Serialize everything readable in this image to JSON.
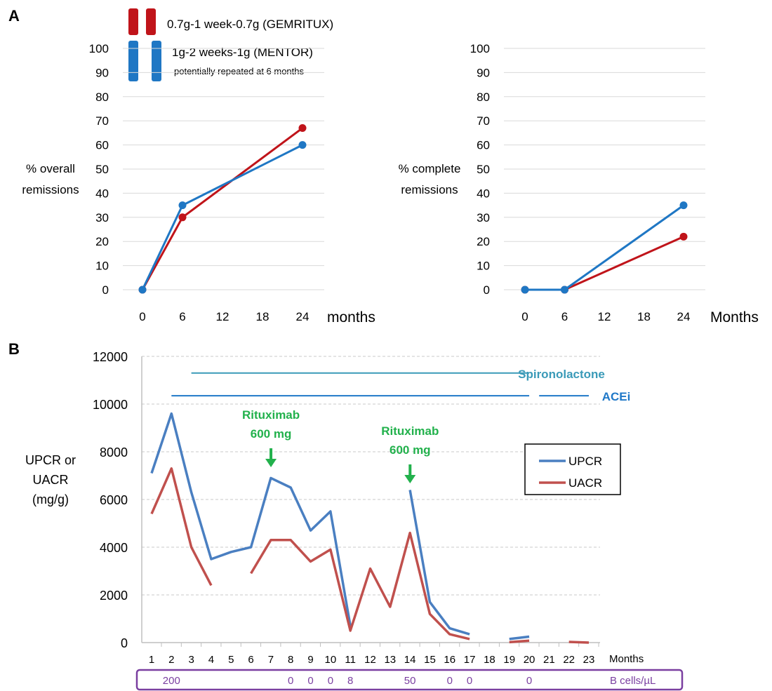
{
  "panels": {
    "a_label": "A",
    "b_label": "B"
  },
  "legend_a": {
    "gemritux": "0.7g-1 week-0.7g (GEMRITUX)",
    "mentor": "1g-2 weeks-1g (MENTOR)",
    "mentor_note": "potentially repeated at 6 months"
  },
  "colors": {
    "red": "#c0141a",
    "blue": "#1f77c4",
    "upcr": "#4a7fc1",
    "uacr": "#c0504d",
    "spironolactone": "#3a9ab8",
    "acei": "#1f78c8",
    "rituximab": "#22b14c",
    "bcells": "#7a3fa0",
    "grid": "#d9d9d9"
  },
  "chart_data": [
    {
      "type": "line",
      "ylabel": [
        "% overall",
        "remissions"
      ],
      "xlabel": "months",
      "x": [
        0,
        6,
        24
      ],
      "xticks": [
        0,
        6,
        12,
        18,
        24
      ],
      "yticks": [
        0,
        10,
        20,
        30,
        40,
        50,
        60,
        70,
        80,
        90,
        100
      ],
      "xlim": [
        0,
        24
      ],
      "ylim": [
        0,
        100
      ],
      "grid": true,
      "series": [
        {
          "key": "gemritux",
          "color": "red",
          "values": [
            0,
            30,
            67
          ]
        },
        {
          "key": "mentor",
          "color": "blue",
          "values": [
            0,
            35,
            60
          ]
        }
      ]
    },
    {
      "type": "line",
      "ylabel": [
        "% complete",
        "remissions"
      ],
      "xlabel": "Months",
      "x": [
        0,
        6,
        24
      ],
      "xticks": [
        0,
        6,
        12,
        18,
        24
      ],
      "yticks": [
        0,
        10,
        20,
        30,
        40,
        50,
        60,
        70,
        80,
        90,
        100
      ],
      "xlim": [
        0,
        24
      ],
      "ylim": [
        0,
        100
      ],
      "grid": true,
      "series": [
        {
          "key": "gemritux",
          "color": "red",
          "values": [
            0,
            0,
            22
          ]
        },
        {
          "key": "mentor",
          "color": "blue",
          "values": [
            0,
            0,
            35
          ]
        }
      ]
    },
    {
      "type": "line",
      "ylabel": [
        "UPCR or",
        "UACR",
        "(mg/g)"
      ],
      "xlabel": "Months",
      "xticks": [
        1,
        2,
        3,
        4,
        5,
        6,
        7,
        8,
        9,
        10,
        11,
        12,
        13,
        14,
        15,
        16,
        17,
        18,
        19,
        20,
        21,
        22,
        23
      ],
      "yticks": [
        0,
        2000,
        4000,
        6000,
        8000,
        10000,
        12000
      ],
      "xlim": [
        1,
        23
      ],
      "ylim": [
        0,
        12000
      ],
      "grid": true,
      "legend": "right",
      "series": [
        {
          "name": "UPCR",
          "color": "upcr",
          "segments": [
            [
              [
                1,
                7100
              ],
              [
                2,
                9600
              ],
              [
                3,
                6300
              ],
              [
                4,
                3500
              ],
              [
                5,
                3800
              ],
              [
                6,
                4000
              ],
              [
                7,
                6900
              ],
              [
                8,
                6500
              ],
              [
                9,
                4700
              ],
              [
                10,
                5500
              ],
              [
                11,
                700
              ]
            ],
            [
              [
                14,
                6400
              ],
              [
                15,
                1700
              ],
              [
                16,
                600
              ],
              [
                17,
                350
              ]
            ],
            [
              [
                19,
                150
              ],
              [
                20,
                250
              ]
            ]
          ]
        },
        {
          "name": "UACR",
          "color": "uacr",
          "segments": [
            [
              [
                1,
                5400
              ],
              [
                2,
                7300
              ],
              [
                3,
                4000
              ],
              [
                4,
                2400
              ]
            ],
            [
              [
                6,
                2900
              ],
              [
                7,
                4300
              ],
              [
                8,
                4300
              ],
              [
                9,
                3400
              ],
              [
                10,
                3900
              ],
              [
                11,
                500
              ],
              [
                12,
                3100
              ],
              [
                13,
                1500
              ],
              [
                14,
                4600
              ],
              [
                15,
                1200
              ],
              [
                16,
                350
              ],
              [
                17,
                150
              ]
            ],
            [
              [
                19,
                20
              ],
              [
                20,
                80
              ]
            ],
            [
              [
                22,
                30
              ],
              [
                23,
                0
              ]
            ]
          ]
        }
      ],
      "treatments": [
        {
          "name": "Spironolactone",
          "color": "spironolactone",
          "y": 11300,
          "spans": [
            [
              3,
              20
            ]
          ]
        },
        {
          "name": "ACEi",
          "color": "acei",
          "y": 10350,
          "spans": [
            [
              2,
              20
            ],
            [
              20.5,
              23
            ]
          ]
        }
      ],
      "annotations": [
        {
          "lines": [
            "Rituximab",
            "600 mg"
          ],
          "x": 7.5
        },
        {
          "lines": [
            "Rituximab",
            "600 mg"
          ],
          "x": 14.5
        }
      ],
      "bcells": {
        "unit": "B cells/µL",
        "values": [
          {
            "x": 2,
            "v": "200"
          },
          {
            "x": 8,
            "v": "0"
          },
          {
            "x": 9,
            "v": "0"
          },
          {
            "x": 10,
            "v": "0"
          },
          {
            "x": 11,
            "v": "8"
          },
          {
            "x": 14,
            "v": "50"
          },
          {
            "x": 16,
            "v": "0"
          },
          {
            "x": 17,
            "v": "0"
          },
          {
            "x": 20,
            "v": "0"
          }
        ]
      }
    }
  ]
}
